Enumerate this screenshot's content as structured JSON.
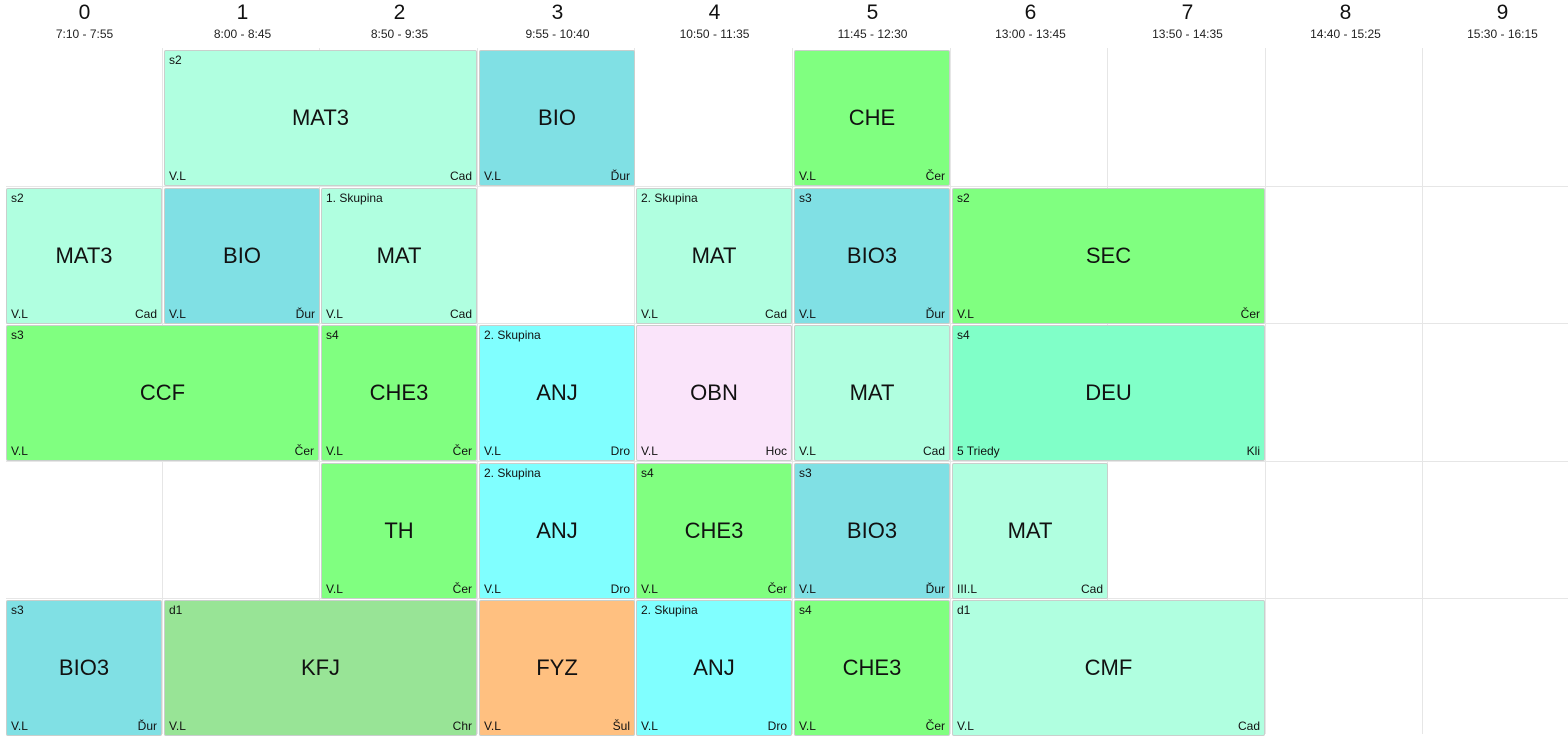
{
  "periods": [
    {
      "num": "0",
      "time": "7:10 - 7:55"
    },
    {
      "num": "1",
      "time": "8:00 - 8:45"
    },
    {
      "num": "2",
      "time": "8:50 - 9:35"
    },
    {
      "num": "3",
      "time": "9:55 - 10:40"
    },
    {
      "num": "4",
      "time": "10:50 - 11:35"
    },
    {
      "num": "5",
      "time": "11:45 - 12:30"
    },
    {
      "num": "6",
      "time": "13:00 - 13:45"
    },
    {
      "num": "7",
      "time": "13:50 - 14:35"
    },
    {
      "num": "8",
      "time": "14:40 - 15:25"
    },
    {
      "num": "9",
      "time": "15:30 - 16:15"
    }
  ],
  "colors": {
    "MAT": "#b0ffe0",
    "BIO": "#80e0e4",
    "CHE": "#80ff80",
    "ANJ": "#80ffff",
    "OBN": "#fae4fa",
    "DEU": "#80ffc8",
    "KFJ": "#98e496",
    "FYZ": "#ffc080"
  },
  "days": [
    {
      "lessons": [
        {
          "period": 1,
          "span": 2,
          "subject": "MAT3",
          "group": "s2",
          "room": "V.L",
          "teacher": "Cad",
          "color": "MAT"
        },
        {
          "period": 3,
          "span": 1,
          "subject": "BIO",
          "group": "",
          "room": "V.L",
          "teacher": "Ďur",
          "color": "BIO"
        },
        {
          "period": 5,
          "span": 1,
          "subject": "CHE",
          "group": "",
          "room": "V.L",
          "teacher": "Čer",
          "color": "CHE"
        }
      ]
    },
    {
      "lessons": [
        {
          "period": 0,
          "span": 1,
          "subject": "MAT3",
          "group": "s2",
          "room": "V.L",
          "teacher": "Cad",
          "color": "MAT"
        },
        {
          "period": 1,
          "span": 1,
          "subject": "BIO",
          "group": "",
          "room": "V.L",
          "teacher": "Ďur",
          "color": "BIO"
        },
        {
          "period": 2,
          "span": 1,
          "subject": "MAT",
          "group": "1. Skupina",
          "room": "V.L",
          "teacher": "Cad",
          "color": "MAT"
        },
        {
          "period": 4,
          "span": 1,
          "subject": "MAT",
          "group": "2. Skupina",
          "room": "V.L",
          "teacher": "Cad",
          "color": "MAT"
        },
        {
          "period": 5,
          "span": 1,
          "subject": "BIO3",
          "group": "s3",
          "room": "V.L",
          "teacher": "Ďur",
          "color": "BIO"
        },
        {
          "period": 6,
          "span": 2,
          "subject": "SEC",
          "group": "s2",
          "room": "V.L",
          "teacher": "Čer",
          "color": "CHE"
        }
      ]
    },
    {
      "lessons": [
        {
          "period": 0,
          "span": 2,
          "subject": "CCF",
          "group": "s3",
          "room": "V.L",
          "teacher": "Čer",
          "color": "CHE"
        },
        {
          "period": 2,
          "span": 1,
          "subject": "CHE3",
          "group": "s4",
          "room": "V.L",
          "teacher": "Čer",
          "color": "CHE"
        },
        {
          "period": 3,
          "span": 1,
          "subject": "ANJ",
          "group": "2. Skupina",
          "room": "V.L",
          "teacher": "Dro",
          "color": "ANJ"
        },
        {
          "period": 4,
          "span": 1,
          "subject": "OBN",
          "group": "",
          "room": "V.L",
          "teacher": "Hoc",
          "color": "OBN"
        },
        {
          "period": 5,
          "span": 1,
          "subject": "MAT",
          "group": "",
          "room": "V.L",
          "teacher": "Cad",
          "color": "MAT"
        },
        {
          "period": 6,
          "span": 2,
          "subject": "DEU",
          "group": "s4",
          "room": "5 Triedy",
          "teacher": "Kli",
          "color": "DEU"
        }
      ]
    },
    {
      "lessons": [
        {
          "period": 2,
          "span": 1,
          "subject": "TH",
          "group": "",
          "room": "V.L",
          "teacher": "Čer",
          "color": "CHE"
        },
        {
          "period": 3,
          "span": 1,
          "subject": "ANJ",
          "group": "2. Skupina",
          "room": "V.L",
          "teacher": "Dro",
          "color": "ANJ"
        },
        {
          "period": 4,
          "span": 1,
          "subject": "CHE3",
          "group": "s4",
          "room": "V.L",
          "teacher": "Čer",
          "color": "CHE"
        },
        {
          "period": 5,
          "span": 1,
          "subject": "BIO3",
          "group": "s3",
          "room": "V.L",
          "teacher": "Ďur",
          "color": "BIO"
        },
        {
          "period": 6,
          "span": 1,
          "subject": "MAT",
          "group": "",
          "room": "III.L",
          "teacher": "Cad",
          "color": "MAT"
        }
      ]
    },
    {
      "lessons": [
        {
          "period": 0,
          "span": 1,
          "subject": "BIO3",
          "group": "s3",
          "room": "V.L",
          "teacher": "Ďur",
          "color": "BIO"
        },
        {
          "period": 1,
          "span": 2,
          "subject": "KFJ",
          "group": "d1",
          "room": "V.L",
          "teacher": "Chr",
          "color": "KFJ"
        },
        {
          "period": 3,
          "span": 1,
          "subject": "FYZ",
          "group": "",
          "room": "V.L",
          "teacher": "Šul",
          "color": "FYZ"
        },
        {
          "period": 4,
          "span": 1,
          "subject": "ANJ",
          "group": "2. Skupina",
          "room": "V.L",
          "teacher": "Dro",
          "color": "ANJ"
        },
        {
          "period": 5,
          "span": 1,
          "subject": "CHE3",
          "group": "s4",
          "room": "V.L",
          "teacher": "Čer",
          "color": "CHE"
        },
        {
          "period": 6,
          "span": 2,
          "subject": "CMF",
          "group": "d1",
          "room": "V.L",
          "teacher": "Cad",
          "color": "MAT"
        }
      ]
    }
  ]
}
